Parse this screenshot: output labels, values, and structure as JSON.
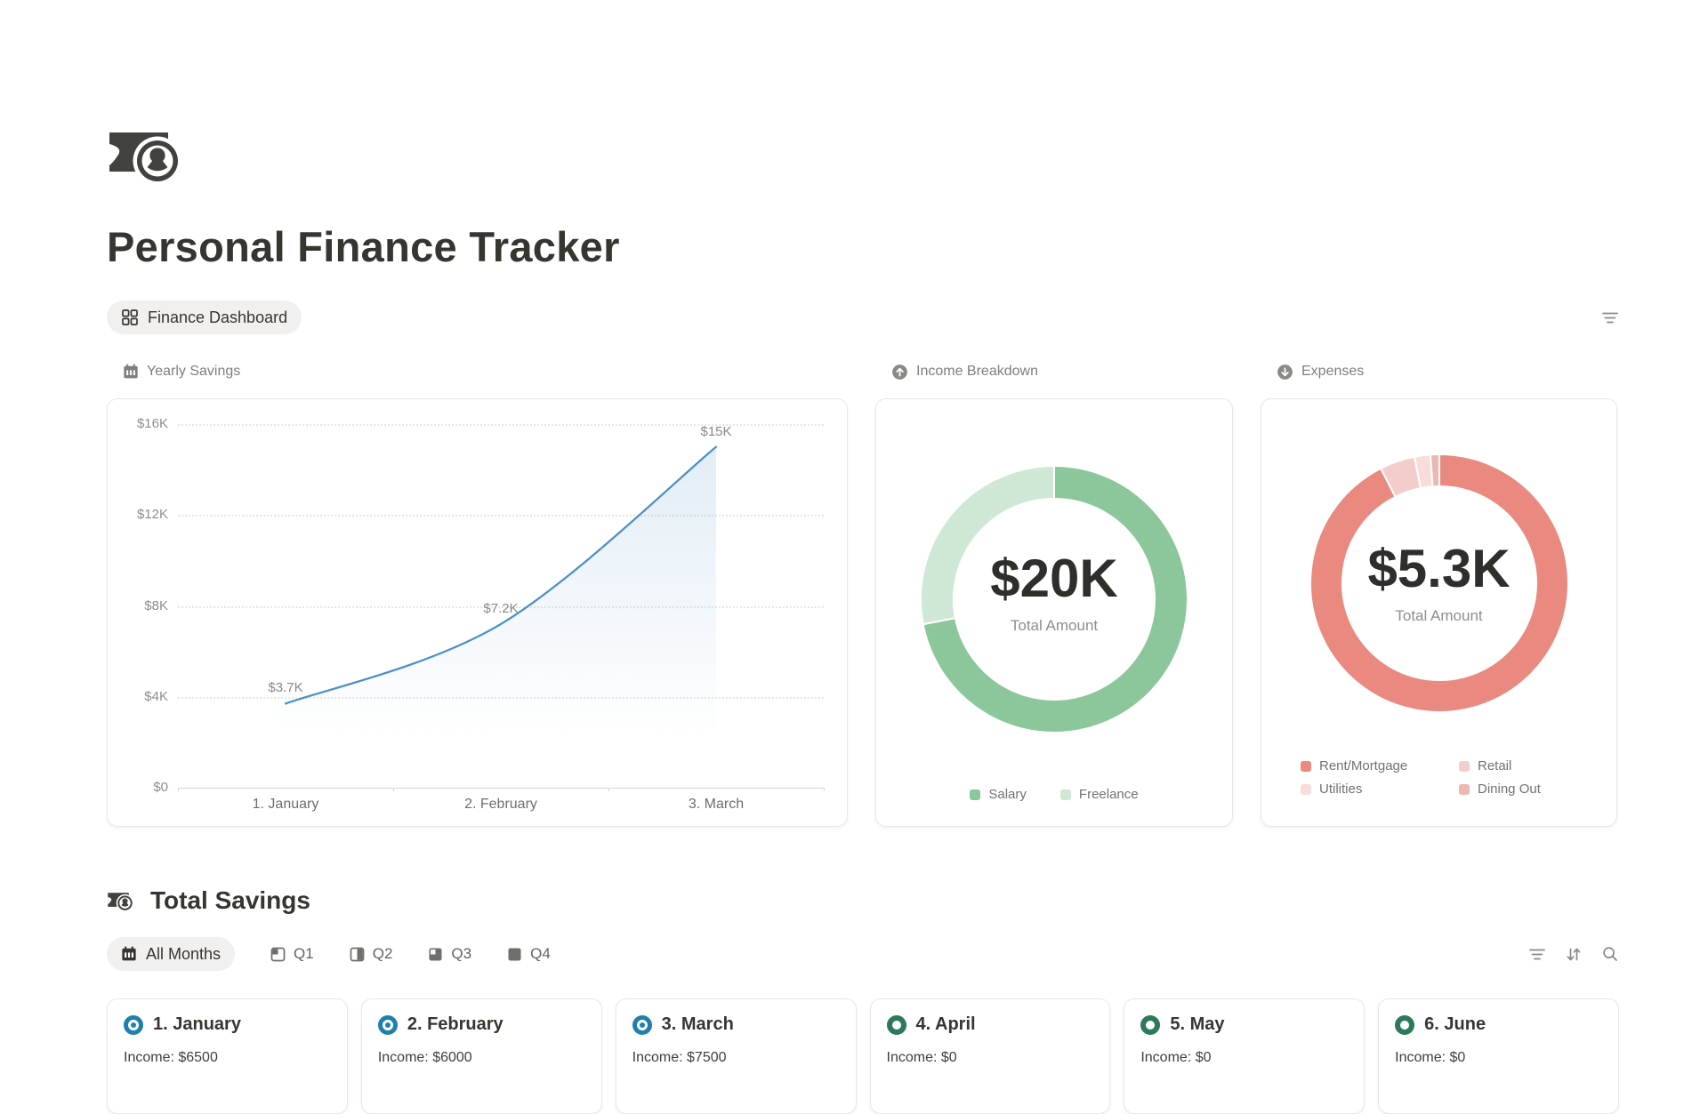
{
  "page": {
    "title": "Personal Finance Tracker",
    "icon": "money-bill-portrait-icon"
  },
  "header": {
    "view_tab_label": "Finance Dashboard",
    "view_tab_icon": "dashboard-grid-icon",
    "toolbar_icon": "filter-icon"
  },
  "theme": {
    "text_dark": "#37352f",
    "text_gray": "#7f7e7a",
    "card_border": "#e7e7e5",
    "chip_bg": "#f1f0ef",
    "line_blue": "#4a8fc7",
    "status_blue": "#1f80ad",
    "status_green": "#2c7a57"
  },
  "chart_data": [
    {
      "id": "yearly-savings",
      "type": "area",
      "title": "Yearly Savings",
      "header_icon": "calendar-icon",
      "categories": [
        "1. January",
        "2. February",
        "3. March"
      ],
      "values": [
        3700,
        7200,
        15000
      ],
      "point_labels": [
        "$3.7K",
        "$7.2K",
        "$15K"
      ],
      "ylim": [
        0,
        16000
      ],
      "y_ticks": [
        {
          "value": 0,
          "label": "$0"
        },
        {
          "value": 4000,
          "label": "$4K"
        },
        {
          "value": 8000,
          "label": "$8K"
        },
        {
          "value": 12000,
          "label": "$12K"
        },
        {
          "value": 16000,
          "label": "$16K"
        }
      ],
      "grid": "dotted-horizontal",
      "legend": "none",
      "line_color": "#4a8fc7"
    },
    {
      "id": "income-breakdown",
      "type": "pie",
      "title": "Income Breakdown",
      "header_icon": "circle-arrow-up-icon",
      "center_value": "$20K",
      "center_caption": "Total Amount",
      "labels": [
        "Salary",
        "Freelance"
      ],
      "values_pct": [
        72,
        28
      ],
      "colors": [
        "#8cc79b",
        "#cfe8d6"
      ],
      "legend_position": "bottom"
    },
    {
      "id": "expenses",
      "type": "pie",
      "title": "Expenses",
      "header_icon": "circle-arrow-down-icon",
      "center_value": "$5.3K",
      "center_caption": "Total Amount",
      "labels": [
        "Rent/Mortgage",
        "Retail",
        "Utilities",
        "Dining Out"
      ],
      "values_pct": [
        92.5,
        4.4,
        2,
        1.1
      ],
      "colors": [
        "#e9897f",
        "#f3cdc9",
        "#f8dcd9",
        "#efb7b1"
      ],
      "legend_position": "bottom-grid"
    }
  ],
  "total_savings": {
    "title": "Total Savings",
    "section_icon": "money-bill-portrait-icon",
    "all_months": {
      "label": "All Months",
      "icon": "calendar-icon",
      "active": true
    },
    "quarter_tabs": [
      {
        "label": "Q1",
        "fill_pct": 25
      },
      {
        "label": "Q2",
        "fill_pct": 50
      },
      {
        "label": "Q3",
        "fill_pct": 75
      },
      {
        "label": "Q4",
        "fill_pct": 100
      }
    ],
    "toolbar_icons": [
      "filter-icon",
      "sort-updown-icon",
      "search-icon"
    ]
  },
  "months": [
    {
      "title": "1. January",
      "income": "Income: $6500",
      "status": "blue"
    },
    {
      "title": "2. February",
      "income": "Income: $6000",
      "status": "blue"
    },
    {
      "title": "3. March",
      "income": "Income: $7500",
      "status": "blue"
    },
    {
      "title": "4. April",
      "income": "Income: $0",
      "status": "green"
    },
    {
      "title": "5. May",
      "income": "Income: $0",
      "status": "green"
    },
    {
      "title": "6. June",
      "income": "Income: $0",
      "status": "green"
    }
  ]
}
